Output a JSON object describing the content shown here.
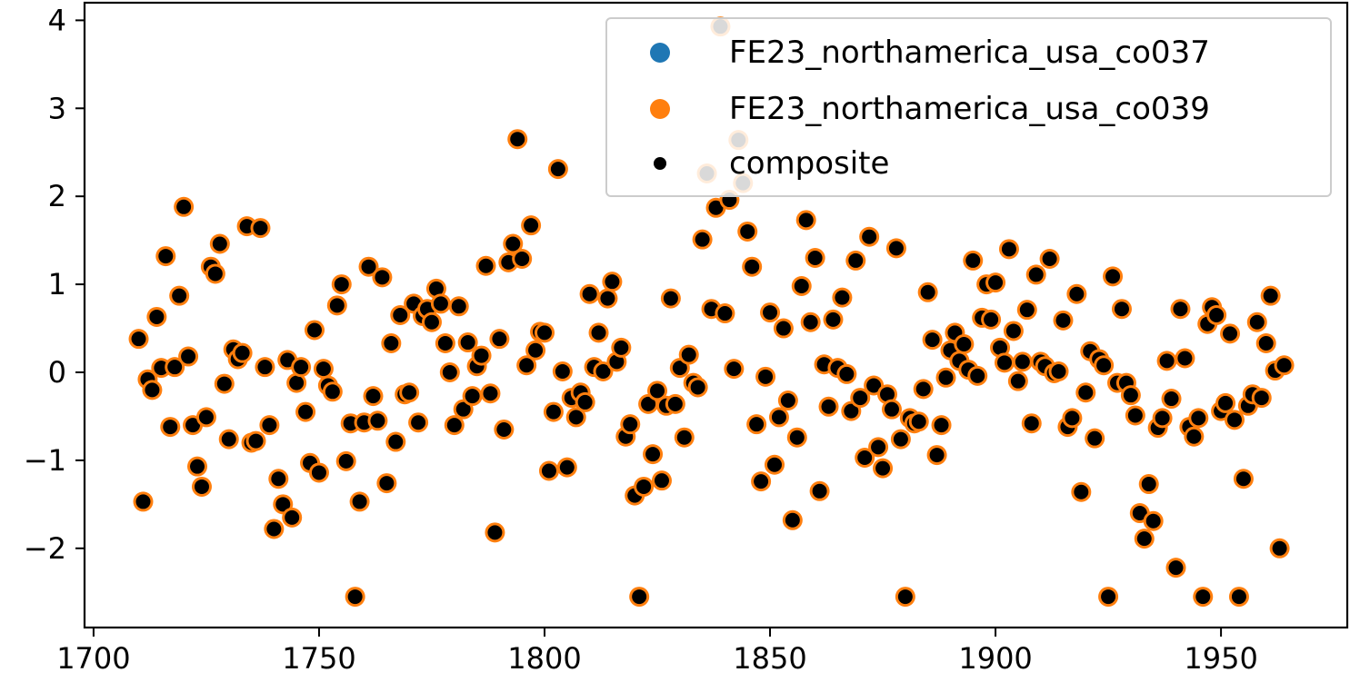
{
  "chart_data": {
    "type": "scatter",
    "title": "",
    "xlabel": "",
    "ylabel": "",
    "xlim": [
      1698,
      1978
    ],
    "ylim": [
      -2.9,
      4.2
    ],
    "x_ticks": [
      "1700",
      "1750",
      "1800",
      "1850",
      "1900",
      "1950"
    ],
    "y_ticks": [
      "−2",
      "−1",
      "0",
      "1",
      "2",
      "3",
      "4"
    ],
    "grid": false,
    "legend_position": "top-right",
    "series": [
      {
        "name": "FE23_northamerica_usa_co037",
        "color": "#1f77b4",
        "marker_size": "medium"
      },
      {
        "name": "FE23_northamerica_usa_co039",
        "color": "#ff7f0e",
        "marker_size": "large"
      },
      {
        "name": "composite",
        "color": "#000000",
        "marker_size": "small"
      }
    ],
    "x": [
      1710,
      1711,
      1712,
      1713,
      1714,
      1715,
      1716,
      1717,
      1718,
      1719,
      1720,
      1721,
      1722,
      1723,
      1724,
      1725,
      1726,
      1727,
      1728,
      1729,
      1730,
      1731,
      1732,
      1733,
      1734,
      1735,
      1736,
      1737,
      1738,
      1739,
      1740,
      1741,
      1742,
      1743,
      1744,
      1745,
      1746,
      1747,
      1748,
      1749,
      1750,
      1751,
      1752,
      1753,
      1754,
      1755,
      1756,
      1757,
      1758,
      1759,
      1760,
      1761,
      1762,
      1763,
      1764,
      1765,
      1766,
      1767,
      1768,
      1769,
      1770,
      1771,
      1772,
      1773,
      1774,
      1775,
      1776,
      1777,
      1778,
      1779,
      1780,
      1781,
      1782,
      1783,
      1784,
      1785,
      1786,
      1787,
      1788,
      1789,
      1790,
      1791,
      1792,
      1793,
      1794,
      1795,
      1796,
      1797,
      1798,
      1799,
      1800,
      1801,
      1802,
      1803,
      1804,
      1805,
      1806,
      1807,
      1808,
      1809,
      1810,
      1811,
      1812,
      1813,
      1814,
      1815,
      1816,
      1817,
      1818,
      1819,
      1820,
      1821,
      1822,
      1823,
      1824,
      1825,
      1826,
      1827,
      1828,
      1829,
      1830,
      1831,
      1832,
      1833,
      1834,
      1835,
      1836,
      1837,
      1838,
      1839,
      1840,
      1841,
      1842,
      1843,
      1844,
      1845,
      1846,
      1847,
      1848,
      1849,
      1850,
      1851,
      1852,
      1853,
      1854,
      1855,
      1856,
      1857,
      1858,
      1859,
      1860,
      1861,
      1862,
      1863,
      1864,
      1865,
      1866,
      1867,
      1868,
      1869,
      1870,
      1871,
      1872,
      1873,
      1874,
      1875,
      1876,
      1877,
      1878,
      1879,
      1880,
      1881,
      1882,
      1883,
      1884,
      1885,
      1886,
      1887,
      1888,
      1889,
      1890,
      1891,
      1892,
      1893,
      1894,
      1895,
      1896,
      1897,
      1898,
      1899,
      1900,
      1901,
      1902,
      1903,
      1904,
      1905,
      1906,
      1907,
      1908,
      1909,
      1910,
      1911,
      1912,
      1913,
      1914,
      1915,
      1916,
      1917,
      1918,
      1919,
      1920,
      1921,
      1922,
      1923,
      1924,
      1925,
      1926,
      1927,
      1928,
      1929,
      1930,
      1931,
      1932,
      1933,
      1934,
      1935,
      1936,
      1937,
      1938,
      1939,
      1940,
      1941,
      1942,
      1943,
      1944,
      1945,
      1946,
      1947,
      1948,
      1949,
      1950,
      1951,
      1952,
      1953,
      1954,
      1955,
      1956,
      1957,
      1958,
      1959,
      1960,
      1961,
      1962,
      1963,
      1964
    ],
    "y": [
      0.38,
      -1.47,
      -0.08,
      -0.2,
      0.63,
      0.05,
      1.32,
      -0.62,
      0.06,
      0.87,
      1.88,
      0.18,
      -0.6,
      -1.07,
      -1.3,
      -0.51,
      1.2,
      1.12,
      1.46,
      -0.13,
      -0.76,
      0.26,
      0.15,
      0.22,
      1.66,
      -0.8,
      -0.78,
      1.64,
      0.06,
      -0.6,
      -1.78,
      -1.21,
      -1.5,
      0.14,
      -1.65,
      -0.12,
      0.06,
      -0.45,
      -1.03,
      0.48,
      -1.14,
      0.04,
      -0.15,
      -0.22,
      0.76,
      1.0,
      -1.01,
      -0.58,
      -2.55,
      -1.47,
      -0.57,
      1.2,
      -0.27,
      -0.55,
      1.08,
      -1.26,
      0.33,
      -0.79,
      0.65,
      -0.25,
      -0.23,
      0.78,
      -0.57,
      0.64,
      0.72,
      0.57,
      0.95,
      0.78,
      0.33,
      0.0,
      -0.6,
      0.75,
      -0.42,
      0.34,
      -0.27,
      0.07,
      0.19,
      1.21,
      -0.24,
      -1.82,
      0.38,
      -0.65,
      1.25,
      1.46,
      2.65,
      1.29,
      0.08,
      1.67,
      0.25,
      0.46,
      0.45,
      -1.12,
      -0.45,
      2.31,
      0.01,
      -1.08,
      -0.29,
      -0.51,
      -0.23,
      -0.34,
      0.89,
      0.06,
      0.45,
      0.01,
      0.84,
      1.03,
      0.12,
      0.28,
      -0.73,
      -0.59,
      -1.4,
      -2.55,
      -1.3,
      -0.36,
      -0.93,
      -0.21,
      -1.23,
      -0.38,
      0.84,
      -0.36,
      0.05,
      -0.74,
      0.2,
      -0.12,
      -0.17,
      1.51,
      2.26,
      0.72,
      1.87,
      3.93,
      0.67,
      1.96,
      0.04,
      2.64,
      2.15,
      1.6,
      1.2,
      -0.59,
      -1.24,
      -0.05,
      0.68,
      -1.05,
      -0.51,
      0.5,
      -0.32,
      -1.68,
      -0.74,
      0.98,
      1.73,
      0.57,
      1.3,
      -1.35,
      0.09,
      -0.39,
      0.6,
      0.05,
      0.85,
      -0.02,
      -0.44,
      1.27,
      -0.29,
      -0.97,
      1.54,
      -0.15,
      -0.85,
      -1.09,
      -0.25,
      -0.42,
      1.41,
      -0.76,
      -2.55,
      -0.52,
      -0.58,
      -0.56,
      -0.19,
      0.91,
      0.37,
      -0.94,
      -0.6,
      -0.06,
      0.25,
      0.45,
      0.13,
      0.32,
      0.03,
      1.27,
      -0.04,
      0.62,
      1.0,
      0.6,
      1.02,
      0.28,
      0.11,
      1.4,
      0.47,
      -0.1,
      0.12,
      0.71,
      -0.58,
      1.11,
      0.12,
      0.07,
      1.29,
      -0.01,
      0.01,
      0.59,
      -0.62,
      -0.52,
      0.89,
      -1.36,
      -0.23,
      0.24,
      -0.75,
      0.15,
      0.08,
      -2.55,
      1.09,
      -0.12,
      0.72,
      -0.12,
      -0.26,
      -0.49,
      -1.6,
      -1.89,
      -1.27,
      -1.69,
      -0.63,
      -0.52,
      0.13,
      -0.3,
      -2.22,
      0.72,
      0.16,
      -0.62,
      -0.73,
      -0.52,
      -2.55,
      0.55,
      0.74,
      0.65,
      -0.44,
      -0.35,
      0.44,
      -0.54,
      -2.55,
      -1.21,
      -0.38,
      -0.25,
      0.57,
      -0.29,
      0.33,
      0.87,
      0.02,
      -2.0,
      0.08
    ]
  }
}
